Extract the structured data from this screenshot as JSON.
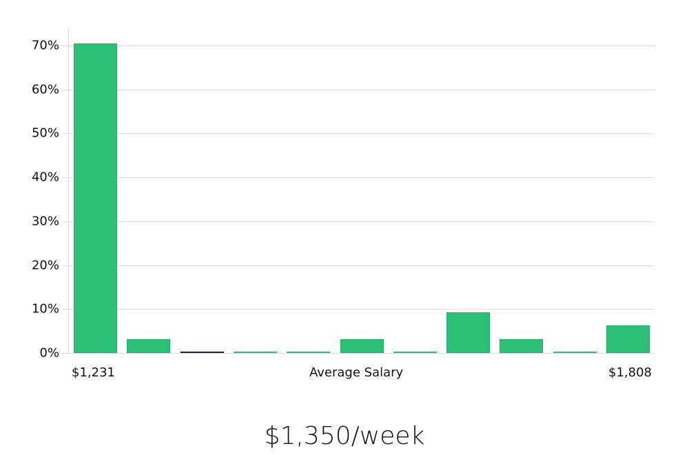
{
  "chart_data": {
    "type": "bar",
    "title": "",
    "xlabel": "Average Salary",
    "ylabel": "",
    "categories": [
      "bin1",
      "bin2",
      "bin3",
      "bin4",
      "bin5",
      "bin6",
      "bin7",
      "bin8",
      "bin9",
      "bin10",
      "bin11"
    ],
    "values": [
      70.5,
      3.2,
      0,
      0,
      0,
      3.2,
      0,
      9.3,
      3.2,
      0,
      6.3
    ],
    "value_unit": "%",
    "x_range_labels": {
      "min": "$1,231",
      "max": "$1,808"
    },
    "ylim": [
      0,
      74
    ],
    "yticks": [
      0,
      10,
      20,
      30,
      40,
      50,
      60,
      70
    ],
    "ytick_labels": [
      "0%",
      "10%",
      "20%",
      "30%",
      "40%",
      "50%",
      "60%",
      "70%"
    ],
    "grid": true,
    "legend": null,
    "bar_color": "#2bbf77"
  },
  "axis": {
    "x_min_label": "$1,231",
    "x_center_label": "Average Salary",
    "x_max_label": "$1,808"
  },
  "summary": {
    "text": "$1,350/week"
  }
}
